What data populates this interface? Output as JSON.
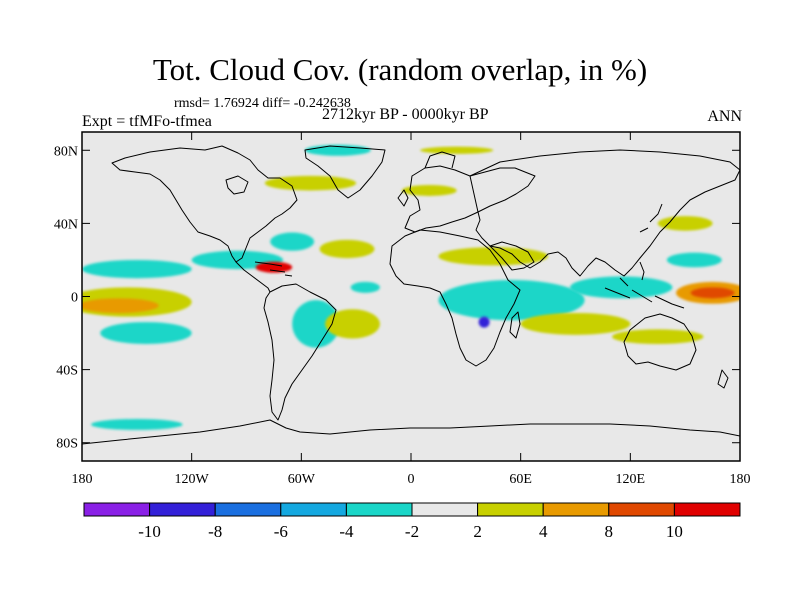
{
  "title": "Tot. Cloud Cov. (random overlap, in %)",
  "stats": "rmsd= 1.76924 diff= -0.242638",
  "experiment": "Expt = tfMFo-tfmea",
  "period": "2712kyr BP - 0000kyr BP",
  "season": "ANN",
  "chart_data": {
    "type": "heatmap",
    "projection": "cylindrical-equidistant",
    "xlim": [
      -180,
      180
    ],
    "ylim": [
      -90,
      90
    ],
    "x_ticks": [
      {
        "value": -180,
        "label": "180"
      },
      {
        "value": -120,
        "label": "120W"
      },
      {
        "value": -60,
        "label": "60W"
      },
      {
        "value": 0,
        "label": "0"
      },
      {
        "value": 60,
        "label": "60E"
      },
      {
        "value": 120,
        "label": "120E"
      },
      {
        "value": 180,
        "label": "180"
      }
    ],
    "y_ticks": [
      {
        "value": 80,
        "label": "80N"
      },
      {
        "value": 40,
        "label": "40N"
      },
      {
        "value": 0,
        "label": "0"
      },
      {
        "value": -40,
        "label": "40S"
      },
      {
        "value": -80,
        "label": "80S"
      }
    ],
    "colorbar": {
      "colors": [
        "#8a20e6",
        "#3320d8",
        "#1a6fe0",
        "#14a8e0",
        "#1ad6c8",
        "#e8e8e8",
        "#c8d000",
        "#e89a00",
        "#e04800",
        "#e00000"
      ],
      "labels": [
        "-10",
        "-8",
        "-6",
        "-4",
        "-2",
        "2",
        "4",
        "8",
        "10"
      ]
    },
    "background_color": "#e8e8e8",
    "anomalies": [
      {
        "lon": 165,
        "lat": 2,
        "dlon": 20,
        "dlat": 6,
        "level": 7
      },
      {
        "lon": 165,
        "lat": 2,
        "dlon": 12,
        "dlat": 3,
        "level": 8
      },
      {
        "lon": -155,
        "lat": -3,
        "dlon": 35,
        "dlat": 8,
        "level": 6
      },
      {
        "lon": -160,
        "lat": -5,
        "dlon": 22,
        "dlat": 4,
        "level": 7
      },
      {
        "lon": -150,
        "lat": 15,
        "dlon": 30,
        "dlat": 5,
        "level": 4
      },
      {
        "lon": -145,
        "lat": -20,
        "dlon": 25,
        "dlat": 6,
        "level": 4
      },
      {
        "lon": -95,
        "lat": 20,
        "dlon": 25,
        "dlat": 5,
        "level": 4
      },
      {
        "lon": -75,
        "lat": 16,
        "dlon": 10,
        "dlat": 3,
        "level": 9
      },
      {
        "lon": -65,
        "lat": 30,
        "dlon": 12,
        "dlat": 5,
        "level": 4
      },
      {
        "lon": -52,
        "lat": -15,
        "dlon": 13,
        "dlat": 13,
        "level": 4
      },
      {
        "lon": -32,
        "lat": -15,
        "dlon": 15,
        "dlat": 8,
        "level": 6
      },
      {
        "lon": -35,
        "lat": 26,
        "dlon": 15,
        "dlat": 5,
        "level": 6
      },
      {
        "lon": 55,
        "lat": -2,
        "dlon": 40,
        "dlat": 11,
        "level": 4
      },
      {
        "lon": 40,
        "lat": -14,
        "dlon": 3,
        "dlat": 3,
        "level": 1
      },
      {
        "lon": 45,
        "lat": 22,
        "dlon": 30,
        "dlat": 5,
        "level": 6
      },
      {
        "lon": 90,
        "lat": -15,
        "dlon": 30,
        "dlat": 6,
        "level": 6
      },
      {
        "lon": 115,
        "lat": 5,
        "dlon": 28,
        "dlat": 6,
        "level": 4
      },
      {
        "lon": 135,
        "lat": -22,
        "dlon": 25,
        "dlat": 4,
        "level": 6
      },
      {
        "lon": -55,
        "lat": 62,
        "dlon": 25,
        "dlat": 4,
        "level": 6
      },
      {
        "lon": 10,
        "lat": 58,
        "dlon": 15,
        "dlat": 3,
        "level": 6
      },
      {
        "lon": 25,
        "lat": 80,
        "dlon": 20,
        "dlat": 2,
        "level": 6
      },
      {
        "lon": -40,
        "lat": 80,
        "dlon": 18,
        "dlat": 3,
        "level": 4
      },
      {
        "lon": -150,
        "lat": -70,
        "dlon": 25,
        "dlat": 3,
        "level": 4
      },
      {
        "lon": 150,
        "lat": 40,
        "dlon": 15,
        "dlat": 4,
        "level": 6
      },
      {
        "lon": 155,
        "lat": 20,
        "dlon": 15,
        "dlat": 4,
        "level": 4
      },
      {
        "lon": -25,
        "lat": 5,
        "dlon": 8,
        "dlat": 3,
        "level": 4
      }
    ]
  }
}
